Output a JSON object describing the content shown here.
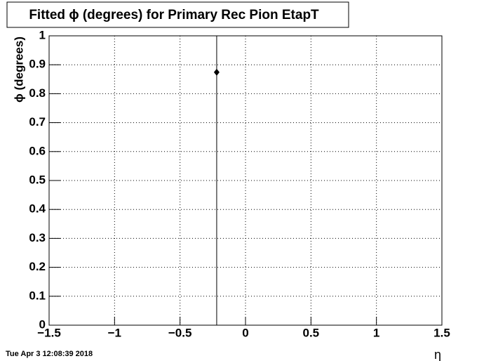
{
  "chart_data": {
    "type": "errorbar",
    "title": "Fitted ϕ (degrees) for Primary Rec Pion EtapT",
    "x_label": "η",
    "y_label": "ϕ (degrees)",
    "timestamp": "Tue Apr  3 12:08:39 2018",
    "x": [
      -0.22
    ],
    "values": [
      0.874
    ],
    "errors": [
      1
    ],
    "color": "#000000",
    "xlim": [
      -1.5,
      1.5
    ],
    "xticks": [
      {
        "value": -1.5,
        "label": "−1.5"
      },
      {
        "value": -1,
        "label": "−1"
      },
      {
        "value": -0.5,
        "label": "−0.5"
      },
      0,
      0.5,
      1,
      1.5
    ],
    "ylim": [
      0,
      1
    ],
    "yticks": [
      0,
      0.1,
      0.2,
      0.3,
      0.4,
      0.5,
      0.6,
      0.7,
      0.8,
      0.9,
      1
    ],
    "grid": true
  }
}
